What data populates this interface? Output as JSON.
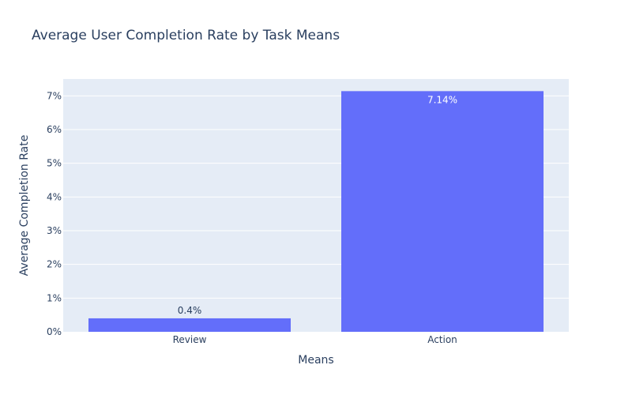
{
  "chart_data": {
    "type": "bar",
    "title": "Average User Completion Rate by Task Means",
    "xlabel": "Means",
    "ylabel": "Average Completion Rate",
    "categories": [
      "Review",
      "Action"
    ],
    "values": [
      0.4,
      7.14
    ],
    "data_labels": [
      "0.4%",
      "7.14%"
    ],
    "ylim": [
      0,
      7.5
    ],
    "yticks": [
      0,
      1,
      2,
      3,
      4,
      5,
      6,
      7
    ],
    "ytick_labels": [
      "0%",
      "1%",
      "2%",
      "3%",
      "4%",
      "5%",
      "6%",
      "7%"
    ],
    "grid": true,
    "colors": {
      "bar": "#636efa",
      "plot_bg": "#e5ecf6",
      "grid": "#ffffff",
      "text": "#2a3f5f"
    }
  }
}
